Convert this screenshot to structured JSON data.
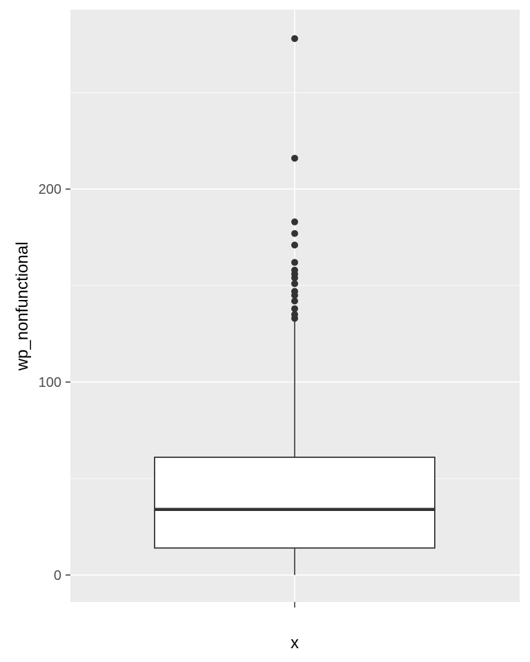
{
  "chart_data": {
    "type": "box",
    "xlabel": "x",
    "ylabel": "wp_nonfunctional",
    "categories": [
      ""
    ],
    "ylim": [
      -14,
      293
    ],
    "yticks": [
      0,
      100,
      200
    ],
    "grid": true,
    "box": {
      "min": 0,
      "q1": 14,
      "median": 34,
      "q3": 61,
      "whisker_high": 133,
      "outliers": [
        133,
        135,
        138,
        142,
        145,
        147,
        151,
        154,
        156,
        158,
        162,
        171,
        177,
        183,
        216,
        278
      ]
    },
    "colors": {
      "panel": "#ebebeb",
      "grid": "#ffffff",
      "box_fill": "#ffffff",
      "box_line": "#333333",
      "outlier": "#333333"
    }
  }
}
